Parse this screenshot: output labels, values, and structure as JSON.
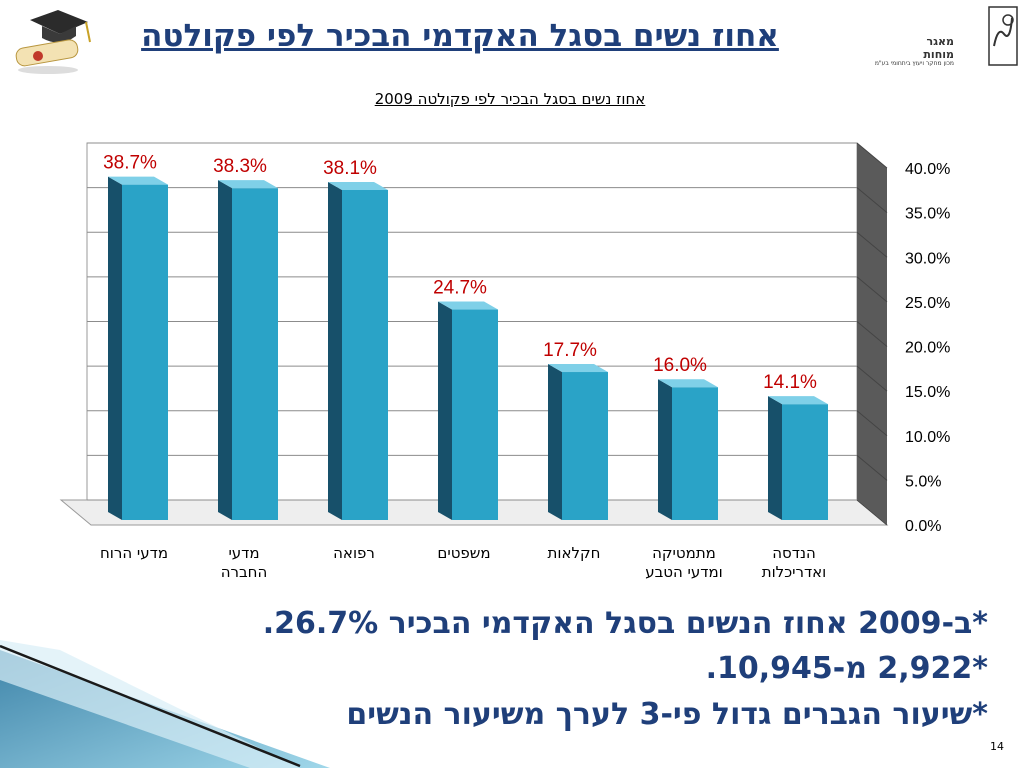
{
  "slide": {
    "title": "אחוז נשים בסגל האקדמי הבכיר לפי פקולטה",
    "logo": {
      "line1": "מאגר",
      "line2": "מוחות",
      "line3": "מכון מחקר ויעוץ ביתחומי בע\"מ"
    },
    "bullets": [
      "*ב-2009 אחוז הנשים בסגל האקדמי הבכיר 26.7%.",
      "*2,922 מ-10,945.",
      "*שיעור הגברים גדול פי-3 לערך משיעור הנשים"
    ],
    "page_number": "14"
  },
  "colors": {
    "bar": "#2aa3c7",
    "bar_dark": "#17506a",
    "label": "#c00000",
    "title": "#1f3f7a"
  },
  "icons": {
    "graduation": "graduation-cap-icon",
    "logo": "brain-logo-icon"
  },
  "chart_data": {
    "type": "bar",
    "title": "אחוז נשים בסגל הבכיר לפי פקולטה 2009",
    "categories": [
      [
        "מדעי הרוח"
      ],
      [
        "מדעי",
        "החברה"
      ],
      [
        "רפואה"
      ],
      [
        "משפטים"
      ],
      [
        "חקלאות"
      ],
      [
        "מתמטיקה",
        "ומדעי הטבע"
      ],
      [
        "הנדסה",
        "ואדריכלות"
      ]
    ],
    "values": [
      38.7,
      38.3,
      38.1,
      24.7,
      17.7,
      16.0,
      14.1
    ],
    "data_labels": [
      "38.7%",
      "38.3%",
      "38.1%",
      "24.7%",
      "17.7%",
      "16.0%",
      "14.1%"
    ],
    "y_ticks": [
      "0.0%",
      "5.0%",
      "10.0%",
      "15.0%",
      "20.0%",
      "25.0%",
      "30.0%",
      "35.0%",
      "40.0%"
    ],
    "ylim": [
      0,
      40
    ],
    "y_axis_side": "right",
    "grid": true,
    "style": "3d"
  }
}
